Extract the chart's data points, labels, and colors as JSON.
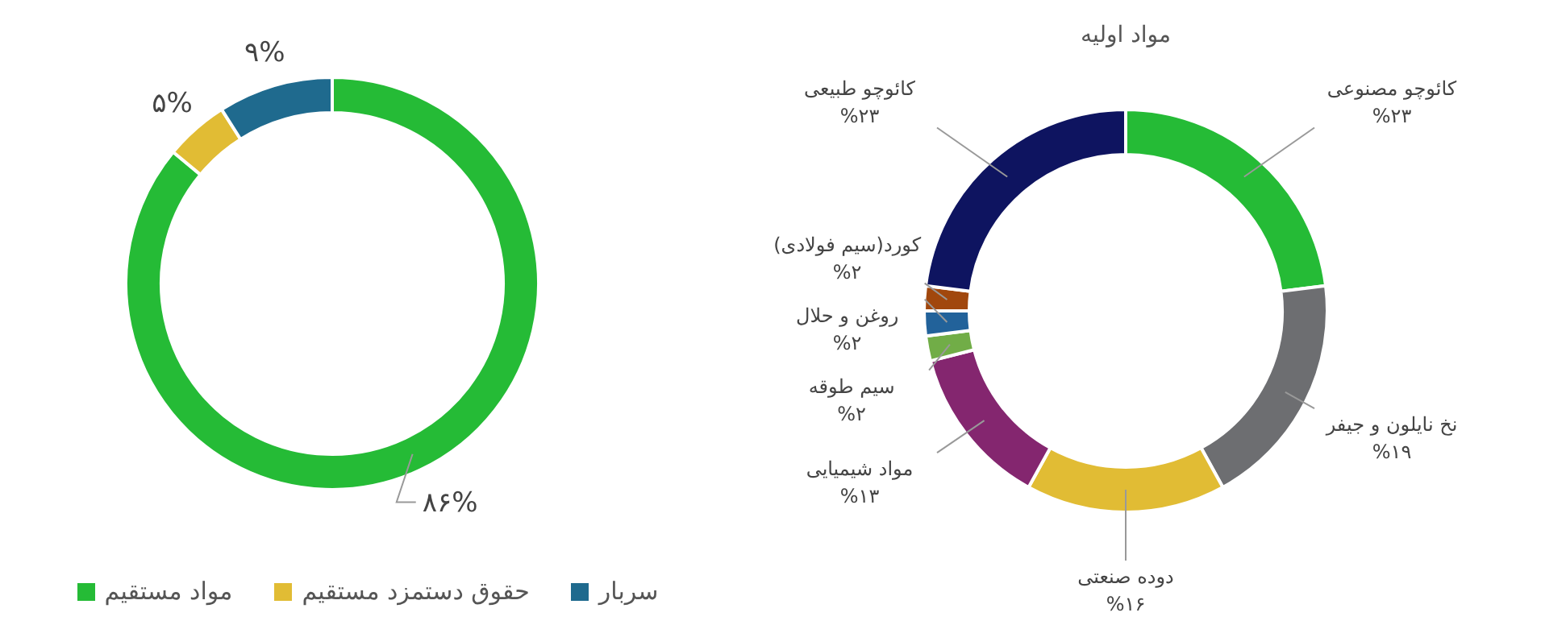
{
  "chart_data": [
    {
      "type": "donut",
      "categories": [
        "مواد مستقیم",
        "حقوق دستمزد مستقیم",
        "سربار"
      ],
      "values": [
        86,
        5,
        9
      ],
      "colors": [
        "#25bb36",
        "#e1bc34",
        "#1f6a8e"
      ],
      "value_labels": [
        "۸۶%",
        "۵%",
        "۹%"
      ],
      "legend": "bottom"
    },
    {
      "type": "donut",
      "title": "مواد اولیه",
      "categories": [
        "کائوچو مصنوعی",
        "نخ نایلون و جیفر",
        "دوده صنعتی",
        "مواد شیمیایی",
        "سیم طوقه",
        "روغن و حلال",
        "کورد(سیم فولادی)",
        "کائوچو طبیعی"
      ],
      "values": [
        23,
        19,
        16,
        13,
        2,
        2,
        2,
        23
      ],
      "colors": [
        "#25bb36",
        "#6d6e71",
        "#e1bc34",
        "#84266f",
        "#71ad47",
        "#22629a",
        "#a1470d",
        "#0e1460"
      ],
      "value_labels": [
        "%۲۳",
        "%۱۹",
        "%۱۶",
        "%۱۳",
        "%۲",
        "%۲",
        "%۲",
        "%۲۳"
      ]
    }
  ]
}
